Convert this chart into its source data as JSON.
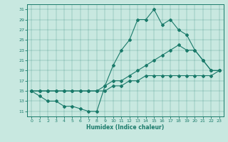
{
  "xlabel": "Humidex (Indice chaleur)",
  "bg_color": "#c8e8e0",
  "line_color": "#1a7a6a",
  "xlim": [
    -0.5,
    23.5
  ],
  "ylim": [
    10,
    32
  ],
  "yticks": [
    11,
    13,
    15,
    17,
    19,
    21,
    23,
    25,
    27,
    29,
    31
  ],
  "xticks": [
    0,
    1,
    2,
    3,
    4,
    5,
    6,
    7,
    8,
    9,
    10,
    11,
    12,
    13,
    14,
    15,
    16,
    17,
    18,
    19,
    20,
    21,
    22,
    23
  ],
  "line1_x": [
    0,
    1,
    2,
    3,
    4,
    5,
    6,
    7,
    8,
    9,
    10,
    11,
    12,
    13,
    14,
    15,
    16,
    17,
    18,
    19,
    20,
    21,
    22,
    23
  ],
  "line1_y": [
    15,
    14,
    13,
    13,
    12,
    12,
    11.5,
    11,
    11,
    16,
    20,
    23,
    25,
    29,
    29,
    31,
    28,
    29,
    27,
    26,
    23,
    21,
    19,
    19
  ],
  "line2_x": [
    0,
    1,
    2,
    3,
    4,
    5,
    6,
    7,
    8,
    9,
    10,
    11,
    12,
    13,
    14,
    15,
    16,
    17,
    18,
    19,
    20,
    21,
    22,
    23
  ],
  "line2_y": [
    15,
    15,
    15,
    15,
    15,
    15,
    15,
    15,
    15,
    16,
    17,
    17,
    18,
    19,
    20,
    21,
    22,
    23,
    24,
    23,
    23,
    21,
    19,
    19
  ],
  "line3_x": [
    0,
    1,
    2,
    3,
    4,
    5,
    6,
    7,
    8,
    9,
    10,
    11,
    12,
    13,
    14,
    15,
    16,
    17,
    18,
    19,
    20,
    21,
    22,
    23
  ],
  "line3_y": [
    15,
    15,
    15,
    15,
    15,
    15,
    15,
    15,
    15,
    15,
    16,
    16,
    17,
    17,
    18,
    18,
    18,
    18,
    18,
    18,
    18,
    18,
    18,
    19
  ]
}
